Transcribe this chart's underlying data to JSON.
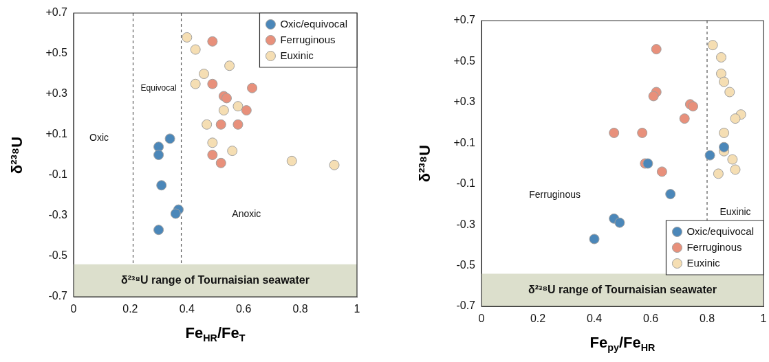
{
  "chart_data": [
    {
      "type": "scatter",
      "xlabel": "Fe$_{HR}$/Fe$_{T}$",
      "ylabel": "δ²³⁸U",
      "xlim": [
        0,
        1
      ],
      "xticks": [
        0,
        0.2,
        0.4,
        0.6,
        0.8,
        1
      ],
      "ylim": [
        -0.7,
        0.7
      ],
      "yticks": [
        {
          "value": -0.7,
          "label": "-0.7"
        },
        {
          "value": -0.5,
          "label": "-0.5"
        },
        {
          "value": -0.3,
          "label": "-0.3"
        },
        {
          "value": -0.1,
          "label": "-0.1"
        },
        {
          "value": 0.1,
          "label": "+0.1"
        },
        {
          "value": 0.3,
          "label": "+0.3"
        },
        {
          "value": 0.5,
          "label": "+0.5"
        },
        {
          "value": 0.7,
          "label": "+0.7"
        }
      ],
      "marker": "circle",
      "legend": "top right",
      "series": [
        {
          "name": "Oxic/equivocal",
          "color": "#4b87b9",
          "x": [
            0.34,
            0.3,
            0.3,
            0.31,
            0.37,
            0.36,
            0.3
          ],
          "values": [
            0.08,
            0.04,
            0.0,
            -0.15,
            -0.27,
            -0.29,
            -0.37
          ]
        },
        {
          "name": "Ferruginous",
          "color": "#e8907b",
          "x": [
            0.49,
            0.49,
            0.63,
            0.53,
            0.54,
            0.61,
            0.52,
            0.58,
            0.49,
            0.52
          ],
          "values": [
            0.56,
            0.35,
            0.33,
            0.29,
            0.28,
            0.22,
            0.15,
            0.15,
            0.0,
            -0.04
          ]
        },
        {
          "name": "Euxinic",
          "color": "#f5deb3",
          "x": [
            0.4,
            0.43,
            0.55,
            0.46,
            0.43,
            0.58,
            0.53,
            0.47,
            0.49,
            0.56,
            0.77,
            0.92
          ],
          "values": [
            0.58,
            0.52,
            0.44,
            0.4,
            0.35,
            0.24,
            0.22,
            0.15,
            0.06,
            0.02,
            -0.03,
            -0.05
          ]
        }
      ],
      "ref_lines": [
        {
          "axis": "x",
          "value": 0.21,
          "color": "#555555",
          "line_style": "dashed"
        },
        {
          "axis": "x",
          "value": 0.38,
          "color": "#555555",
          "line_style": "dashed"
        }
      ],
      "bands": [
        {
          "axis": "y",
          "from": -0.7,
          "to": -0.54,
          "label": "δ²³⁸U range of Tournaisian seawater",
          "color": "#dcdfcc"
        }
      ],
      "annotations": [
        "Oxic",
        "Equivocal",
        "Anoxic"
      ]
    },
    {
      "type": "scatter",
      "xlabel": "Fe$_{py}$/Fe$_{HR}$",
      "ylabel": "δ²³⁸U",
      "xlim": [
        0,
        1
      ],
      "xticks": [
        0,
        0.2,
        0.4,
        0.6,
        0.8,
        1
      ],
      "ylim": [
        -0.7,
        0.7
      ],
      "yticks": [
        {
          "value": -0.7,
          "label": "-0.7"
        },
        {
          "value": -0.5,
          "label": "-0.5"
        },
        {
          "value": -0.3,
          "label": "-0.3"
        },
        {
          "value": -0.1,
          "label": "-0.1"
        },
        {
          "value": 0.1,
          "label": "+0.1"
        },
        {
          "value": 0.3,
          "label": "+0.3"
        },
        {
          "value": 0.5,
          "label": "+0.5"
        },
        {
          "value": 0.7,
          "label": "+0.7"
        }
      ],
      "marker": "circle",
      "legend": "bottom right",
      "series": [
        {
          "name": "Oxic/equivocal",
          "color": "#4b87b9",
          "x": [
            0.59,
            0.86,
            0.81,
            0.67,
            0.47,
            0.49,
            0.4
          ],
          "values": [
            0.0,
            0.08,
            0.04,
            -0.15,
            -0.27,
            -0.29,
            -0.37
          ]
        },
        {
          "name": "Ferruginous",
          "color": "#e8907b",
          "x": [
            0.62,
            0.62,
            0.61,
            0.74,
            0.75,
            0.72,
            0.47,
            0.57,
            0.58,
            0.64
          ],
          "values": [
            0.56,
            0.35,
            0.33,
            0.29,
            0.28,
            0.22,
            0.15,
            0.15,
            0.0,
            -0.04
          ]
        },
        {
          "name": "Euxinic",
          "color": "#f5deb3",
          "x": [
            0.82,
            0.85,
            0.85,
            0.86,
            0.88,
            0.92,
            0.9,
            0.86,
            0.86,
            0.89,
            0.9,
            0.84
          ],
          "values": [
            0.58,
            0.52,
            0.44,
            0.4,
            0.35,
            0.24,
            0.22,
            0.15,
            0.06,
            0.02,
            -0.03,
            -0.05
          ]
        }
      ],
      "ref_lines": [
        {
          "axis": "x",
          "value": 0.8,
          "color": "#555555",
          "line_style": "dashed"
        }
      ],
      "bands": [
        {
          "axis": "y",
          "from": -0.7,
          "to": -0.54,
          "label": "δ²³⁸U range of Tournaisian seawater",
          "color": "#dcdfcc"
        }
      ],
      "annotations": [
        "Ferruginous",
        "Euxinic"
      ]
    }
  ]
}
